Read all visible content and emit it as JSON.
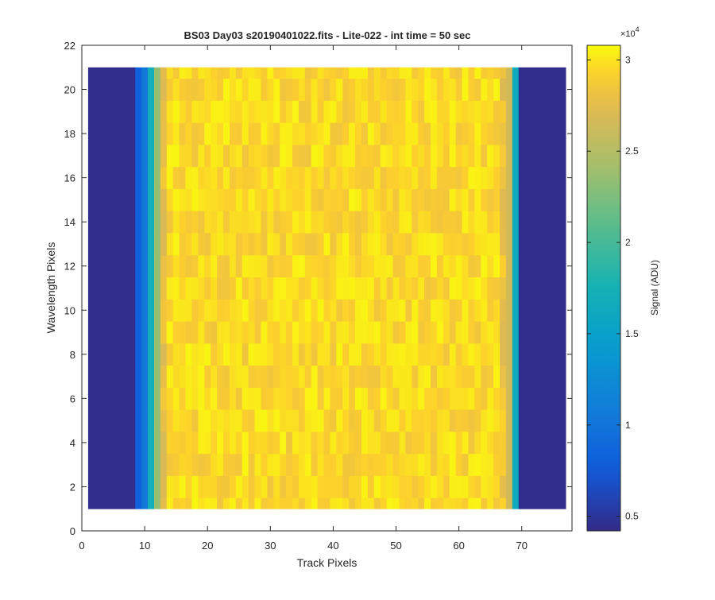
{
  "chart_data": {
    "type": "heatmap",
    "title": "BS03 Day03  s20190401022.fits - Lite-022 - int time = 50 sec",
    "xlabel": "Track Pixels",
    "ylabel": "Wavelength Pixels",
    "xlim": [
      0,
      78
    ],
    "ylim": [
      0,
      22
    ],
    "xticks": [
      0,
      10,
      20,
      30,
      40,
      50,
      60,
      70
    ],
    "yticks": [
      0,
      2,
      4,
      6,
      8,
      10,
      12,
      14,
      16,
      18,
      20,
      22
    ],
    "x_cells": [
      1,
      77
    ],
    "y_cells": [
      1,
      21
    ],
    "colormap": "parula",
    "colorbar": {
      "label": "Signal (ADU)",
      "exponent_label": "×10",
      "exponent": "4",
      "range": [
        0.42,
        3.08
      ],
      "ticks": [
        0.5,
        1,
        1.5,
        2,
        2.5,
        3
      ],
      "tick_labels": [
        "0.5",
        "1",
        "1.5",
        "2",
        "2.5",
        "3"
      ]
    },
    "column_profile": {
      "dark_columns": "1-8 and 70-77 (~0.45)",
      "column_9": 0.8,
      "column_10": 1.05,
      "column_11": 1.7,
      "column_12": 2.35,
      "interior_columns": "13-68 (~2.8-3.05)",
      "column_69": 1.65,
      "column_68": 2.65
    },
    "grid": false
  }
}
